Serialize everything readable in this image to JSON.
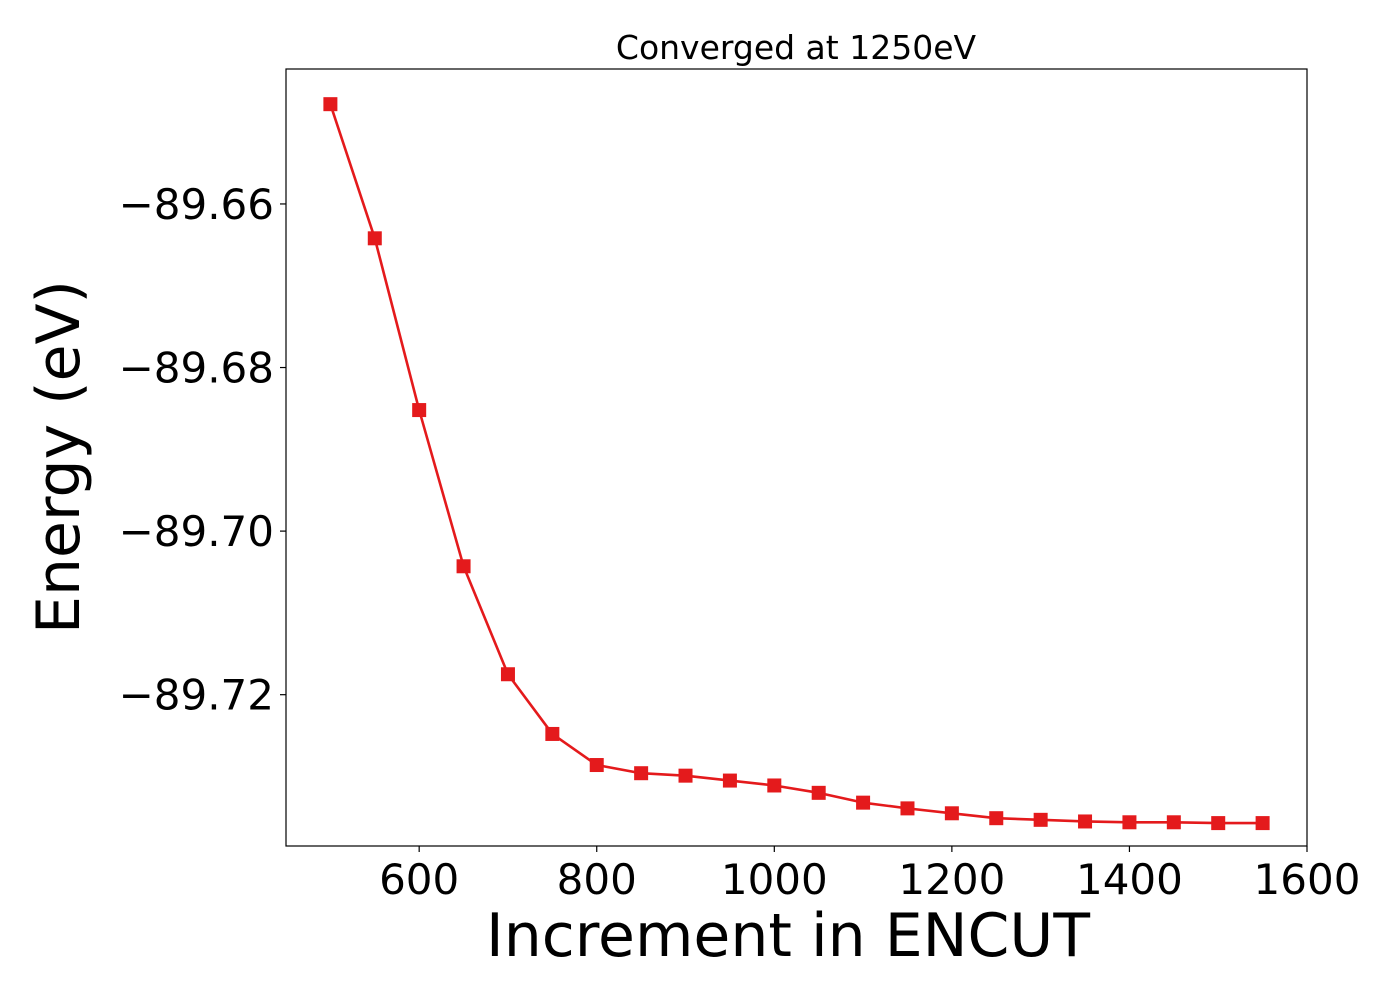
{
  "chart_data": {
    "type": "line",
    "title": "Converged at 1250eV",
    "xlabel": "Increment in ENCUT",
    "ylabel": "Energy (eV)",
    "xlim": [
      450,
      1600
    ],
    "ylim": [
      -89.7385,
      -89.6435
    ],
    "x_ticks": [
      600,
      800,
      1000,
      1200,
      1400,
      1600
    ],
    "x_tick_labels": [
      "600",
      "800",
      "1000",
      "1200",
      "1400",
      "1600"
    ],
    "y_ticks": [
      -89.66,
      -89.68,
      -89.7,
      -89.72
    ],
    "y_tick_labels": [
      "−89.66",
      "−89.68",
      "−89.70",
      "−89.72"
    ],
    "grid": false,
    "marker": "square",
    "series": [
      {
        "color": "#e41a1c",
        "x": [
          500,
          550,
          600,
          650,
          700,
          750,
          800,
          850,
          900,
          950,
          1000,
          1050,
          1100,
          1150,
          1200,
          1250,
          1300,
          1350,
          1400,
          1450,
          1500,
          1550
        ],
        "y": [
          -89.6478,
          -89.6642,
          -89.6852,
          -89.7043,
          -89.7175,
          -89.7248,
          -89.7286,
          -89.7296,
          -89.7299,
          -89.7305,
          -89.7311,
          -89.732,
          -89.7332,
          -89.7339,
          -89.7345,
          -89.7351,
          -89.7353,
          -89.7355,
          -89.7356,
          -89.7356,
          -89.7357,
          -89.7357
        ]
      }
    ]
  }
}
